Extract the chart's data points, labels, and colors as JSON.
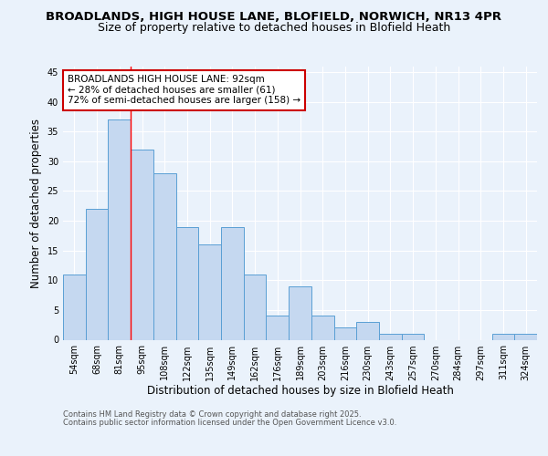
{
  "title_line1": "BROADLANDS, HIGH HOUSE LANE, BLOFIELD, NORWICH, NR13 4PR",
  "title_line2": "Size of property relative to detached houses in Blofield Heath",
  "xlabel": "Distribution of detached houses by size in Blofield Heath",
  "ylabel": "Number of detached properties",
  "bins": [
    "54sqm",
    "68sqm",
    "81sqm",
    "95sqm",
    "108sqm",
    "122sqm",
    "135sqm",
    "149sqm",
    "162sqm",
    "176sqm",
    "189sqm",
    "203sqm",
    "216sqm",
    "230sqm",
    "243sqm",
    "257sqm",
    "270sqm",
    "284sqm",
    "297sqm",
    "311sqm",
    "324sqm"
  ],
  "values": [
    11,
    22,
    37,
    32,
    28,
    19,
    16,
    19,
    11,
    4,
    9,
    4,
    2,
    3,
    1,
    1,
    0,
    0,
    0,
    1,
    1
  ],
  "bar_color": "#c5d8f0",
  "bar_edge_color": "#5a9fd4",
  "annotation_line1": "BROADLANDS HIGH HOUSE LANE: 92sqm",
  "annotation_line2": "← 28% of detached houses are smaller (61)",
  "annotation_line3": "72% of semi-detached houses are larger (158) →",
  "annotation_box_color": "#ffffff",
  "annotation_box_edge": "#cc0000",
  "ylim": [
    0,
    46
  ],
  "yticks": [
    0,
    5,
    10,
    15,
    20,
    25,
    30,
    35,
    40,
    45
  ],
  "footer_line1": "Contains HM Land Registry data © Crown copyright and database right 2025.",
  "footer_line2": "Contains public sector information licensed under the Open Government Licence v3.0.",
  "bg_color": "#eaf2fb",
  "plot_bg_color": "#eaf2fb",
  "grid_color": "#ffffff",
  "title1_fontsize": 9.5,
  "title2_fontsize": 9,
  "tick_fontsize": 7,
  "label_fontsize": 8.5,
  "annot_fontsize": 7.5,
  "footer_fontsize": 6
}
